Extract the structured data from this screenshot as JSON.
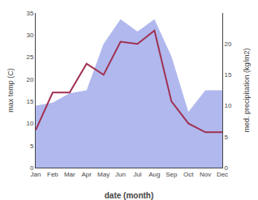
{
  "chart_data": {
    "type": "line",
    "categories": [
      "Jan",
      "Feb",
      "Mar",
      "Apr",
      "May",
      "Jun",
      "Jul",
      "Aug",
      "Sep",
      "Oct",
      "Nov",
      "Dec"
    ],
    "series": [
      {
        "type": "area",
        "axis": "y2",
        "color": "#b0b8ee",
        "values": [
          10,
          10.5,
          12,
          12.5,
          20,
          24,
          22,
          24,
          18,
          9,
          12.5,
          12.5
        ]
      },
      {
        "type": "line",
        "color": "#a03050",
        "values": [
          8.5,
          17,
          17,
          23.5,
          21,
          28.5,
          28,
          31,
          15,
          10,
          8,
          8
        ]
      }
    ],
    "xlabel": "date (month)",
    "ylabel": "max temp (C)",
    "y2label": "med. precipitation (kg/m2)",
    "ylim": [
      0,
      35
    ],
    "yticks": [
      0,
      5,
      10,
      15,
      20,
      25,
      30,
      35
    ],
    "y2lim": [
      0,
      25
    ],
    "y2ticks": [
      0,
      5,
      10,
      15,
      20
    ],
    "grid": false
  }
}
